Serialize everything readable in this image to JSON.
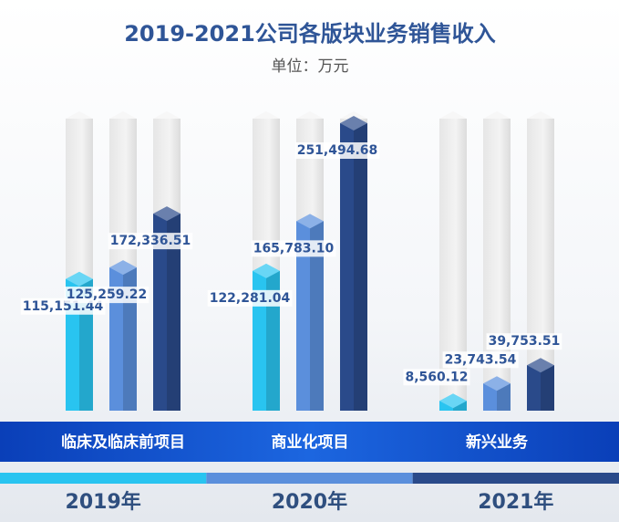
{
  "chart_data": {
    "type": "bar",
    "title": "2019-2021公司各版块业务销售收入",
    "subtitle": "单位：万元",
    "categories": [
      "临床及临床前项目",
      "商业化项目",
      "新兴业务"
    ],
    "series": [
      {
        "name": "2019年",
        "color": "#29c4f0",
        "values": [
          115151.44,
          122281.04,
          8560.12
        ],
        "value_labels": [
          "115,151.44",
          "122,281.04",
          "8,560.12"
        ]
      },
      {
        "name": "2020年",
        "color": "#5b8fdc",
        "values": [
          125259.22,
          165783.1,
          23743.54
        ],
        "value_labels": [
          "125,259.22",
          "165,783.10",
          "23,743.54"
        ]
      },
      {
        "name": "2021年",
        "color": "#2a4a8a",
        "values": [
          172336.51,
          251494.68,
          39753.51
        ],
        "value_labels": [
          "172,336.51",
          "251,494.68",
          "39,753.51"
        ]
      }
    ],
    "legend": "bottom"
  }
}
